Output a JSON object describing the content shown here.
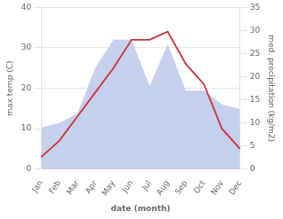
{
  "chart_data": {
    "type": "line",
    "xlabel": "date (month)",
    "ylabel": "max temp (C)",
    "y2label": "med. precipitation (kg/m2)",
    "categories": [
      "Jan",
      "Feb",
      "Mar",
      "Apr",
      "May",
      "Jun",
      "Jul",
      "Aug",
      "Sep",
      "Oct",
      "Nov",
      "Dec"
    ],
    "series": [
      {
        "type": "area",
        "color": "#c5d0ee",
        "axis": "y2",
        "values": [
          9,
          10,
          12,
          22,
          28,
          28,
          18,
          27,
          17,
          17,
          14,
          13
        ]
      },
      {
        "type": "line",
        "color": "#cc3333",
        "values": [
          3,
          7,
          13,
          19,
          25,
          32,
          32,
          34,
          26,
          21,
          10,
          5
        ]
      }
    ],
    "ylim": [
      0,
      40
    ],
    "yticks": [
      0,
      10,
      20,
      30,
      40
    ],
    "y2lim": [
      0,
      35
    ],
    "y2ticks": [
      0,
      5,
      10,
      15,
      20,
      25,
      30,
      35
    ],
    "grid": true
  }
}
